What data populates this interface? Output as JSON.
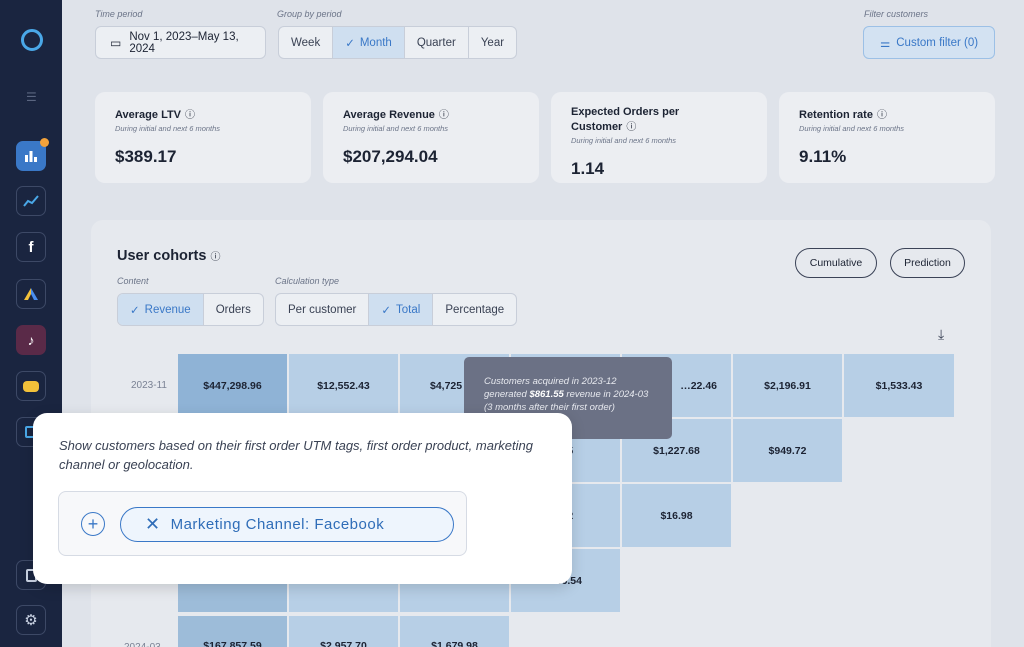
{
  "filters": {
    "time_period_label": "Time period",
    "date_range": "Nov 1, 2023–May 13, 2024",
    "group_by_label": "Group by period",
    "periods": [
      "Week",
      "Month",
      "Quarter",
      "Year"
    ],
    "period_selected": "Month",
    "filter_customers_label": "Filter customers",
    "custom_filter": "Custom filter (0)"
  },
  "kpis": [
    {
      "title": "Average LTV",
      "sub": "During initial and next 6 months",
      "value": "$389.17"
    },
    {
      "title": "Average Revenue",
      "sub": "During initial and next 6 months",
      "value": "$207,294.04"
    },
    {
      "title": "Expected Orders per Customer",
      "sub": "During initial and next 6 months",
      "value": "1.14"
    },
    {
      "title": "Retention rate",
      "sub": "During initial and next 6 months",
      "value": "9.11%"
    }
  ],
  "cohorts": {
    "title": "User cohorts",
    "content_label": "Content",
    "content_options": [
      "Revenue",
      "Orders"
    ],
    "content_selected": "Revenue",
    "calc_label": "Calculation type",
    "calc_options": [
      "Per customer",
      "Total",
      "Percentage"
    ],
    "calc_selected": "Total",
    "cumulative": "Cumulative",
    "prediction": "Prediction",
    "rows": [
      {
        "label": "2023-11",
        "cells": [
          "$447,298.96",
          "$12,552.43",
          "$4,725",
          "",
          "…22.46",
          "$2,196.91",
          "$1,533.43"
        ]
      },
      {
        "label": "",
        "cells": [
          "",
          "",
          "",
          "…55",
          "$1,227.68",
          "$949.72"
        ]
      },
      {
        "label": "",
        "cells": [
          "",
          "",
          "",
          "…42",
          "$16.98"
        ]
      },
      {
        "label": "",
        "cells": [
          "",
          "",
          "",
          "…6.54"
        ]
      },
      {
        "label": "2024-03",
        "cells": [
          "$167,857.59",
          "$2,957.70",
          "$1,679.98"
        ]
      }
    ],
    "tooltip_pre": "Customers acquired in 2023-12 generated",
    "tooltip_bold": "$861.55",
    "tooltip_post": "revenue in 2024-03 (3 months after their first order)"
  },
  "popover": {
    "text": "Show customers based on their first order UTM tags, first order product, marketing channel or geolocation.",
    "chip": "Marketing Channel: Facebook"
  },
  "colors": {
    "accent": "#3a78c7",
    "sidebar": "#1a2540"
  }
}
